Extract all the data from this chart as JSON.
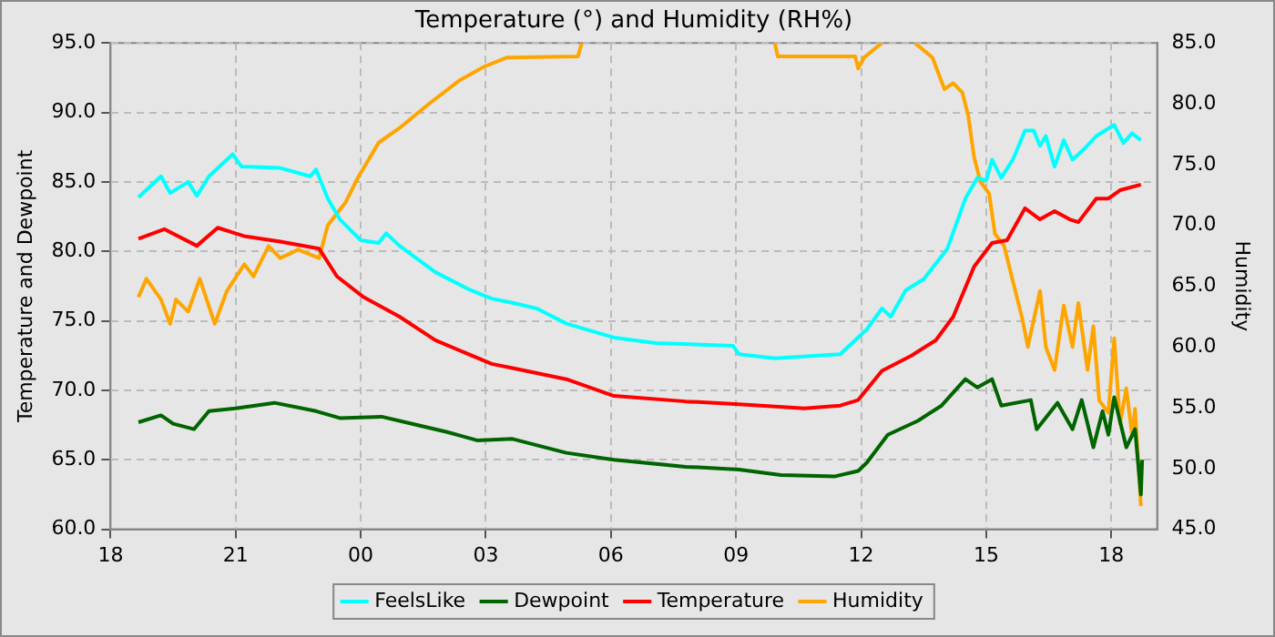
{
  "chart_data": {
    "type": "line",
    "title": "Temperature (°) and Humidity (RH%)",
    "ylabel": "Temperature and Dewpoint",
    "y2label": "Humidity",
    "xlim": [
      18,
      43.1
    ],
    "xticks": [
      {
        "value": 18,
        "label": "18"
      },
      {
        "value": 21,
        "label": "21"
      },
      {
        "value": 24,
        "label": "00"
      },
      {
        "value": 27,
        "label": "03"
      },
      {
        "value": 30,
        "label": "06"
      },
      {
        "value": 33,
        "label": "09"
      },
      {
        "value": 36,
        "label": "12"
      },
      {
        "value": 39,
        "label": "15"
      },
      {
        "value": 42,
        "label": "18"
      }
    ],
    "ylim": [
      60,
      95
    ],
    "yticks": [
      {
        "value": 60,
        "label": "60.0"
      },
      {
        "value": 65,
        "label": "65.0"
      },
      {
        "value": 70,
        "label": "70.0"
      },
      {
        "value": 75,
        "label": "75.0"
      },
      {
        "value": 80,
        "label": "80.0"
      },
      {
        "value": 85,
        "label": "85.0"
      },
      {
        "value": 90,
        "label": "90.0"
      },
      {
        "value": 95,
        "label": "95.0"
      }
    ],
    "y2lim": [
      45,
      85
    ],
    "y2ticks": [
      {
        "value": 45,
        "label": "45.0"
      },
      {
        "value": 50,
        "label": "50.0"
      },
      {
        "value": 55,
        "label": "55.0"
      },
      {
        "value": 60,
        "label": "60.0"
      },
      {
        "value": 65,
        "label": "65.0"
      },
      {
        "value": 70,
        "label": "70.0"
      },
      {
        "value": 75,
        "label": "75.0"
      },
      {
        "value": 80,
        "label": "80.0"
      },
      {
        "value": 85,
        "label": "85.0"
      }
    ],
    "grid": true,
    "legend": "bottom",
    "marker": "none",
    "line_style": "solid",
    "series": [
      {
        "name": "FeelsLike",
        "color": "#00ffff",
        "x": [
          18.67,
          19.21,
          19.43,
          19.86,
          20.07,
          20.36,
          20.93,
          21.14,
          22.07,
          22.79,
          22.93,
          23.21,
          23.5,
          24.0,
          24.43,
          24.61,
          24.93,
          25.79,
          26.64,
          27.14,
          27.64,
          28.21,
          28.93,
          30.07,
          31.07,
          32.93,
          33.07,
          33.93,
          35.5,
          36.14,
          36.5,
          36.71,
          37.07,
          37.5,
          38.07,
          38.5,
          38.79,
          39.0,
          39.14,
          39.36,
          39.64,
          39.93,
          40.14,
          40.29,
          40.43,
          40.64,
          40.86,
          41.07,
          41.36,
          41.64,
          42.07,
          42.29,
          42.5,
          42.71
        ],
        "values": [
          83.9,
          85.4,
          84.2,
          85.0,
          84.0,
          85.4,
          87.0,
          86.1,
          86.0,
          85.4,
          85.9,
          83.8,
          82.3,
          80.8,
          80.6,
          81.3,
          80.4,
          78.5,
          77.2,
          76.6,
          76.3,
          75.9,
          74.8,
          73.8,
          73.4,
          73.2,
          72.6,
          72.3,
          72.6,
          74.4,
          75.9,
          75.3,
          77.2,
          78.0,
          80.2,
          83.8,
          85.3,
          85.1,
          86.6,
          85.3,
          86.6,
          88.7,
          88.7,
          87.6,
          88.3,
          86.1,
          88.0,
          86.6,
          87.4,
          88.3,
          89.1,
          87.8,
          88.5,
          88.0
        ]
      },
      {
        "name": "Dewpoint",
        "color": "#006400",
        "x": [
          18.67,
          19.21,
          19.5,
          20.0,
          20.36,
          21.0,
          21.93,
          22.93,
          23.5,
          24.5,
          25.21,
          26.07,
          26.79,
          27.64,
          28.93,
          30.07,
          31.79,
          33.07,
          34.07,
          35.36,
          35.93,
          36.14,
          36.64,
          37.36,
          37.93,
          38.5,
          38.79,
          39.14,
          39.36,
          40.07,
          40.21,
          40.71,
          41.07,
          41.29,
          41.57,
          41.79,
          41.93,
          42.07,
          42.36,
          42.57,
          42.71,
          42.74
        ],
        "values": [
          67.7,
          68.2,
          67.6,
          67.2,
          68.5,
          68.7,
          69.1,
          68.5,
          68.0,
          68.1,
          67.6,
          67.0,
          66.4,
          66.5,
          65.5,
          65.0,
          64.5,
          64.3,
          63.9,
          63.8,
          64.2,
          64.8,
          66.8,
          67.8,
          68.9,
          70.8,
          70.2,
          70.8,
          68.9,
          69.3,
          67.2,
          69.1,
          67.2,
          69.3,
          65.9,
          68.5,
          66.8,
          69.5,
          65.9,
          67.2,
          62.5,
          65.0
        ]
      },
      {
        "name": "Temperature",
        "color": "#ff0000",
        "x": [
          18.67,
          19.29,
          20.07,
          20.57,
          21.2,
          22.07,
          23.0,
          23.43,
          24.07,
          24.93,
          25.79,
          27.14,
          27.64,
          28.93,
          30.07,
          31.79,
          33.07,
          34.64,
          35.5,
          35.93,
          36.5,
          37.21,
          37.79,
          38.21,
          38.71,
          39.14,
          39.5,
          39.93,
          40.29,
          40.64,
          41.0,
          41.21,
          41.64,
          41.93,
          42.21,
          42.71
        ],
        "values": [
          80.9,
          81.6,
          80.4,
          81.7,
          81.1,
          80.7,
          80.2,
          78.2,
          76.7,
          75.3,
          73.6,
          71.9,
          71.6,
          70.8,
          69.6,
          69.2,
          69.0,
          68.7,
          68.9,
          69.3,
          71.4,
          72.5,
          73.6,
          75.3,
          78.9,
          80.6,
          80.8,
          83.1,
          82.3,
          82.9,
          82.3,
          82.1,
          83.8,
          83.8,
          84.4,
          84.8
        ]
      },
      {
        "name": "Humidity",
        "color": "#ffa500",
        "axis": "y2",
        "x": [
          18.67,
          18.86,
          19.21,
          19.43,
          19.57,
          19.86,
          20.14,
          20.5,
          20.79,
          21.21,
          21.43,
          21.79,
          22.07,
          22.5,
          23.0,
          23.21,
          23.64,
          23.93,
          24.43,
          24.93,
          25.64,
          26.36,
          26.93,
          27.5,
          29.21,
          29.3,
          31.5,
          33.93,
          34.0,
          35.86,
          35.93,
          36.07,
          36.5,
          36.9,
          37.29,
          37.71,
          38.0,
          38.21,
          38.43,
          38.57,
          38.71,
          38.86,
          39.07,
          39.21,
          39.43,
          39.64,
          39.86,
          40.0,
          40.29,
          40.43,
          40.64,
          40.86,
          41.07,
          41.21,
          41.43,
          41.57,
          41.71,
          41.93,
          42.07,
          42.21,
          42.36,
          42.5,
          42.57,
          42.71
        ],
        "values": [
          64.1,
          65.6,
          63.9,
          61.9,
          63.9,
          62.9,
          65.6,
          61.9,
          64.6,
          66.8,
          65.8,
          68.3,
          67.3,
          68.0,
          67.3,
          70.0,
          71.9,
          73.9,
          76.8,
          78.0,
          80.0,
          81.9,
          83.0,
          83.8,
          83.9,
          85.0,
          null,
          85.0,
          83.9,
          83.9,
          82.9,
          83.8,
          85.0,
          null,
          85.0,
          83.8,
          81.2,
          81.7,
          80.9,
          79.0,
          75.6,
          73.6,
          72.6,
          69.3,
          68.3,
          65.4,
          62.4,
          60.0,
          64.6,
          60.0,
          58.1,
          63.4,
          60.0,
          63.6,
          58.1,
          61.7,
          55.6,
          54.6,
          60.7,
          53.7,
          56.6,
          52.7,
          54.9,
          46.9
        ]
      }
    ]
  }
}
